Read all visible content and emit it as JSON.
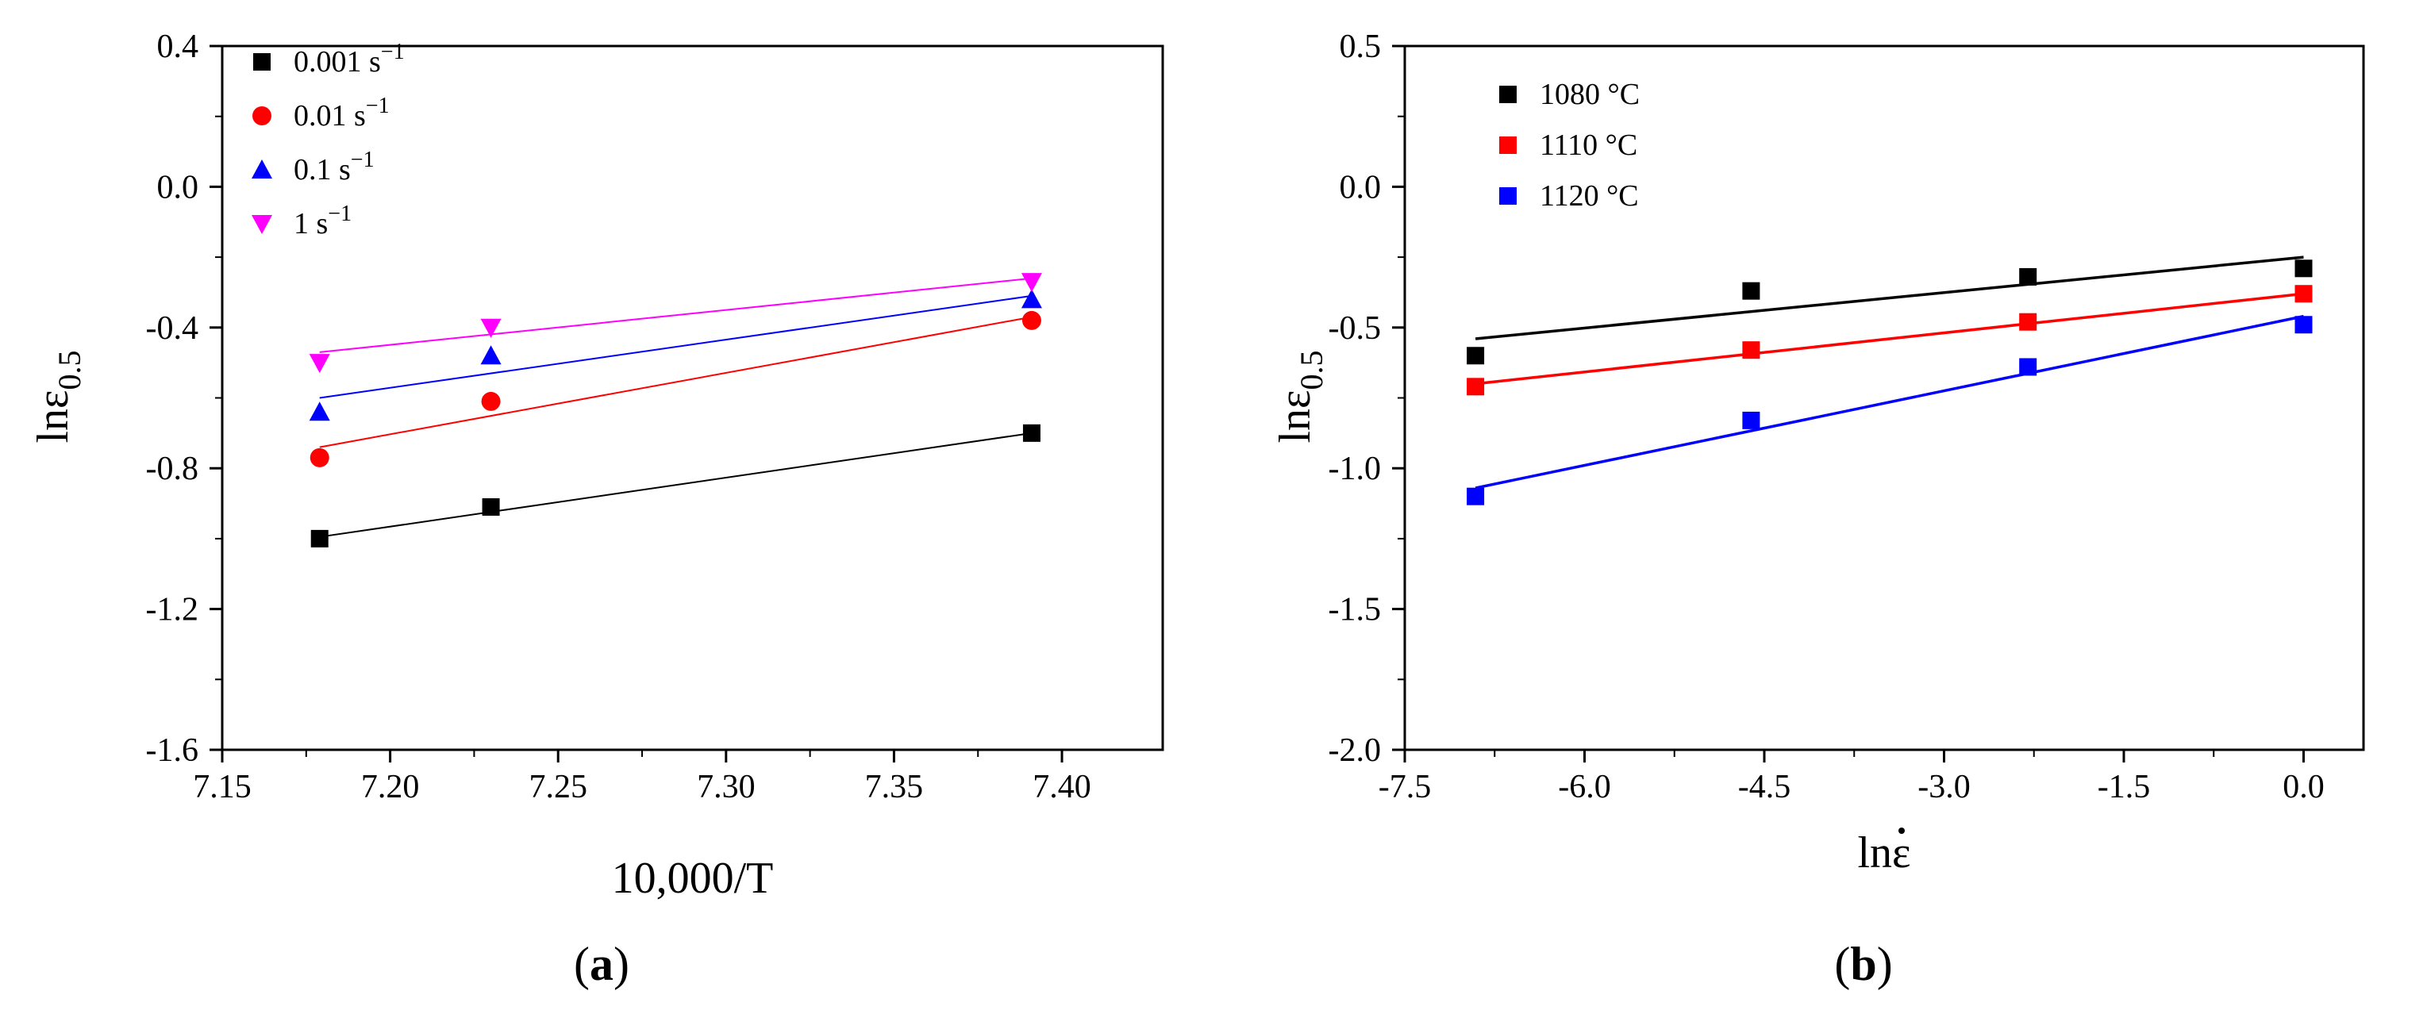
{
  "chart_data": [
    {
      "type": "scatter",
      "panel_label": "a",
      "xlabel": "10,000/T",
      "ylabel_main": "lnε",
      "ylabel_sub": "0.5",
      "xlim": [
        7.15,
        7.43
      ],
      "ylim": [
        -1.6,
        0.4
      ],
      "x_ticks": [
        7.15,
        7.2,
        7.25,
        7.3,
        7.35,
        7.4
      ],
      "x_tick_labels": [
        "7.15",
        "7.20",
        "7.25",
        "7.30",
        "7.35",
        "7.40"
      ],
      "y_ticks": [
        0.4,
        0.0,
        -0.4,
        -0.8,
        -1.2,
        -1.6
      ],
      "y_tick_labels": [
        "0.4",
        "0.0",
        "-0.4",
        "-0.8",
        "-1.2",
        "-1.6"
      ],
      "legend_position": "top-left",
      "series": [
        {
          "name": "0.001 s",
          "unit_sup": "−1",
          "marker": "square",
          "color": "#000000",
          "x": [
            7.179,
            7.23,
            7.391
          ],
          "y": [
            -1.0,
            -0.91,
            -0.7
          ],
          "fit": [
            [
              7.179,
              -0.995
            ],
            [
              7.391,
              -0.7
            ]
          ]
        },
        {
          "name": "0.01 s",
          "unit_sup": "−1",
          "marker": "circle",
          "color": "#ff0000",
          "x": [
            7.179,
            7.23,
            7.391
          ],
          "y": [
            -0.77,
            -0.61,
            -0.38
          ],
          "fit": [
            [
              7.179,
              -0.74
            ],
            [
              7.391,
              -0.37
            ]
          ]
        },
        {
          "name": "0.1 s",
          "unit_sup": "−1",
          "marker": "triangle-up",
          "color": "#0000ff",
          "x": [
            7.179,
            7.23,
            7.391
          ],
          "y": [
            -0.64,
            -0.48,
            -0.32
          ],
          "fit": [
            [
              7.179,
              -0.6
            ],
            [
              7.391,
              -0.31
            ]
          ]
        },
        {
          "name": "1 s",
          "unit_sup": "−1",
          "marker": "triangle-down",
          "color": "#ff00ff",
          "x": [
            7.179,
            7.23,
            7.391
          ],
          "y": [
            -0.5,
            -0.4,
            -0.27
          ],
          "fit": [
            [
              7.179,
              -0.47
            ],
            [
              7.391,
              -0.26
            ]
          ]
        }
      ]
    },
    {
      "type": "scatter",
      "panel_label": "b",
      "xlabel": "lnε",
      "ylabel_main": "lnε",
      "ylabel_sub": "0.5",
      "xlim": [
        -7.5,
        0.5
      ],
      "ylim": [
        -2.0,
        0.5
      ],
      "x_ticks": [
        -7.5,
        -6.0,
        -4.5,
        -3.0,
        -1.5,
        0.0
      ],
      "x_tick_labels": [
        "-7.5",
        "-6.0",
        "-4.5",
        "-3.0",
        "-1.5",
        "0.0"
      ],
      "y_ticks": [
        0.5,
        0.0,
        -0.5,
        -1.0,
        -1.5,
        -2.0
      ],
      "y_tick_labels": [
        "0.5",
        "0.0",
        "-0.5",
        "-1.0",
        "-1.5",
        "-2.0"
      ],
      "legend_position": "top-left",
      "series": [
        {
          "name": "1080 °C",
          "marker": "square",
          "color": "#000000",
          "x": [
            -6.91,
            -4.61,
            -2.3,
            0.0
          ],
          "y": [
            -0.6,
            -0.37,
            -0.32,
            -0.29
          ],
          "fit": [
            [
              -6.91,
              -0.54
            ],
            [
              0.0,
              -0.25
            ]
          ]
        },
        {
          "name": "1110 °C",
          "marker": "square",
          "color": "#ff0000",
          "x": [
            -6.91,
            -4.61,
            -2.3,
            0.0
          ],
          "y": [
            -0.71,
            -0.58,
            -0.48,
            -0.38
          ],
          "fit": [
            [
              -6.91,
              -0.7
            ],
            [
              0.0,
              -0.38
            ]
          ]
        },
        {
          "name": "1120 °C",
          "marker": "square",
          "color": "#0000ff",
          "x": [
            -6.91,
            -4.61,
            -2.3,
            0.0
          ],
          "y": [
            -1.1,
            -0.83,
            -0.64,
            -0.49
          ],
          "fit": [
            [
              -6.91,
              -1.07
            ],
            [
              0.0,
              -0.46
            ]
          ]
        }
      ]
    }
  ]
}
